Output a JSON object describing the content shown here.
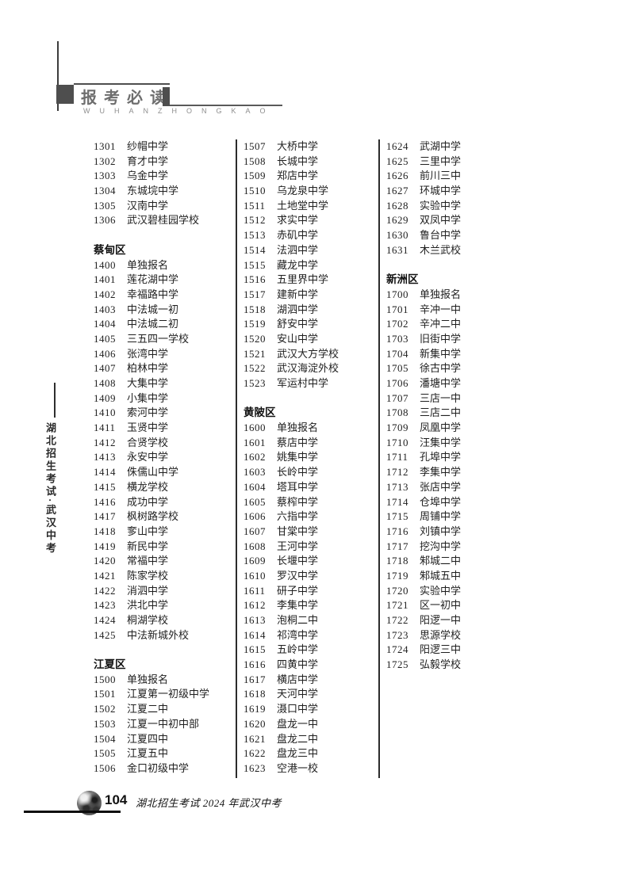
{
  "header": {
    "title": "报考必读",
    "pinyin": "WUHANZHONGKAO"
  },
  "sidebar": {
    "vertical_text": "湖北招生考试·武汉中考"
  },
  "columns": [
    {
      "rows": [
        {
          "code": "1301",
          "name": "纱帽中学"
        },
        {
          "code": "1302",
          "name": "育才中学"
        },
        {
          "code": "1303",
          "name": "乌金中学"
        },
        {
          "code": "1304",
          "name": "东城垸中学"
        },
        {
          "code": "1305",
          "name": "汉南中学"
        },
        {
          "code": "1306",
          "name": "武汉碧桂园学校"
        },
        {
          "blank": true
        },
        {
          "section": "蔡甸区"
        },
        {
          "code": "1400",
          "name": "单独报名"
        },
        {
          "code": "1401",
          "name": "莲花湖中学"
        },
        {
          "code": "1402",
          "name": "幸福路中学"
        },
        {
          "code": "1403",
          "name": "中法城一初"
        },
        {
          "code": "1404",
          "name": "中法城二初"
        },
        {
          "code": "1405",
          "name": "三五四一学校"
        },
        {
          "code": "1406",
          "name": "张湾中学"
        },
        {
          "code": "1407",
          "name": "柏林中学"
        },
        {
          "code": "1408",
          "name": "大集中学"
        },
        {
          "code": "1409",
          "name": "小集中学"
        },
        {
          "code": "1410",
          "name": "索河中学"
        },
        {
          "code": "1411",
          "name": "玉贤中学"
        },
        {
          "code": "1412",
          "name": "合贤学校"
        },
        {
          "code": "1413",
          "name": "永安中学"
        },
        {
          "code": "1414",
          "name": "侏儒山中学"
        },
        {
          "code": "1415",
          "name": "横龙学校"
        },
        {
          "code": "1416",
          "name": "成功中学"
        },
        {
          "code": "1417",
          "name": "枫树路学校"
        },
        {
          "code": "1418",
          "name": "奓山中学"
        },
        {
          "code": "1419",
          "name": "新民中学"
        },
        {
          "code": "1420",
          "name": "常福中学"
        },
        {
          "code": "1421",
          "name": "陈家学校"
        },
        {
          "code": "1422",
          "name": "消泗中学"
        },
        {
          "code": "1423",
          "name": "洪北中学"
        },
        {
          "code": "1424",
          "name": "桐湖学校"
        },
        {
          "code": "1425",
          "name": "中法新城外校"
        },
        {
          "blank": true
        },
        {
          "section": "江夏区"
        },
        {
          "code": "1500",
          "name": "单独报名"
        },
        {
          "code": "1501",
          "name": "江夏第一初级中学"
        },
        {
          "code": "1502",
          "name": "江夏二中"
        },
        {
          "code": "1503",
          "name": "江夏一中初中部"
        },
        {
          "code": "1504",
          "name": "江夏四中"
        },
        {
          "code": "1505",
          "name": "江夏五中"
        },
        {
          "code": "1506",
          "name": "金口初级中学"
        }
      ]
    },
    {
      "rows": [
        {
          "code": "1507",
          "name": "大桥中学"
        },
        {
          "code": "1508",
          "name": "长城中学"
        },
        {
          "code": "1509",
          "name": "郑店中学"
        },
        {
          "code": "1510",
          "name": "乌龙泉中学"
        },
        {
          "code": "1511",
          "name": "土地堂中学"
        },
        {
          "code": "1512",
          "name": "求实中学"
        },
        {
          "code": "1513",
          "name": "赤矶中学"
        },
        {
          "code": "1514",
          "name": "法泗中学"
        },
        {
          "code": "1515",
          "name": "藏龙中学"
        },
        {
          "code": "1516",
          "name": "五里界中学"
        },
        {
          "code": "1517",
          "name": "建新中学"
        },
        {
          "code": "1518",
          "name": "湖泗中学"
        },
        {
          "code": "1519",
          "name": "舒安中学"
        },
        {
          "code": "1520",
          "name": "安山中学"
        },
        {
          "code": "1521",
          "name": "武汉大方学校"
        },
        {
          "code": "1522",
          "name": "武汉海淀外校"
        },
        {
          "code": "1523",
          "name": "军运村中学"
        },
        {
          "blank": true
        },
        {
          "section": "黄陂区"
        },
        {
          "code": "1600",
          "name": "单独报名"
        },
        {
          "code": "1601",
          "name": "蔡店中学"
        },
        {
          "code": "1602",
          "name": "姚集中学"
        },
        {
          "code": "1603",
          "name": "长岭中学"
        },
        {
          "code": "1604",
          "name": "塔耳中学"
        },
        {
          "code": "1605",
          "name": "蔡榨中学"
        },
        {
          "code": "1606",
          "name": "六指中学"
        },
        {
          "code": "1607",
          "name": "甘棠中学"
        },
        {
          "code": "1608",
          "name": "王河中学"
        },
        {
          "code": "1609",
          "name": "长堰中学"
        },
        {
          "code": "1610",
          "name": "罗汉中学"
        },
        {
          "code": "1611",
          "name": "研子中学"
        },
        {
          "code": "1612",
          "name": "李集中学"
        },
        {
          "code": "1613",
          "name": "泡桐二中"
        },
        {
          "code": "1614",
          "name": "祁湾中学"
        },
        {
          "code": "1615",
          "name": "五岭中学"
        },
        {
          "code": "1616",
          "name": "四黄中学"
        },
        {
          "code": "1617",
          "name": "横店中学"
        },
        {
          "code": "1618",
          "name": "天河中学"
        },
        {
          "code": "1619",
          "name": "滠口中学"
        },
        {
          "code": "1620",
          "name": "盘龙一中"
        },
        {
          "code": "1621",
          "name": "盘龙二中"
        },
        {
          "code": "1622",
          "name": "盘龙三中"
        },
        {
          "code": "1623",
          "name": "空港一校"
        }
      ]
    },
    {
      "rows": [
        {
          "code": "1624",
          "name": "武湖中学"
        },
        {
          "code": "1625",
          "name": "三里中学"
        },
        {
          "code": "1626",
          "name": "前川三中"
        },
        {
          "code": "1627",
          "name": "环城中学"
        },
        {
          "code": "1628",
          "name": "实验中学"
        },
        {
          "code": "1629",
          "name": "双凤中学"
        },
        {
          "code": "1630",
          "name": "鲁台中学"
        },
        {
          "code": "1631",
          "name": "木兰武校"
        },
        {
          "blank": true
        },
        {
          "section": "新洲区"
        },
        {
          "code": "1700",
          "name": "单独报名"
        },
        {
          "code": "1701",
          "name": "辛冲一中"
        },
        {
          "code": "1702",
          "name": "辛冲二中"
        },
        {
          "code": "1703",
          "name": "旧街中学"
        },
        {
          "code": "1704",
          "name": "新集中学"
        },
        {
          "code": "1705",
          "name": "徐古中学"
        },
        {
          "code": "1706",
          "name": "潘塘中学"
        },
        {
          "code": "1707",
          "name": "三店一中"
        },
        {
          "code": "1708",
          "name": "三店二中"
        },
        {
          "code": "1709",
          "name": "凤凰中学"
        },
        {
          "code": "1710",
          "name": "汪集中学"
        },
        {
          "code": "1711",
          "name": "孔埠中学"
        },
        {
          "code": "1712",
          "name": "李集中学"
        },
        {
          "code": "1713",
          "name": "张店中学"
        },
        {
          "code": "1714",
          "name": "仓埠中学"
        },
        {
          "code": "1715",
          "name": "周铺中学"
        },
        {
          "code": "1716",
          "name": "刘镇中学"
        },
        {
          "code": "1717",
          "name": "挖沟中学"
        },
        {
          "code": "1718",
          "name": "邾城二中"
        },
        {
          "code": "1719",
          "name": "邾城五中"
        },
        {
          "code": "1720",
          "name": "实验中学"
        },
        {
          "code": "1721",
          "name": "区一初中"
        },
        {
          "code": "1722",
          "name": "阳逻一中"
        },
        {
          "code": "1723",
          "name": "思源学校"
        },
        {
          "code": "1724",
          "name": "阳逻三中"
        },
        {
          "code": "1725",
          "name": "弘毅学校"
        }
      ]
    }
  ],
  "footer": {
    "page_number": "104",
    "text": "湖北招生考试 2024 年武汉中考"
  }
}
